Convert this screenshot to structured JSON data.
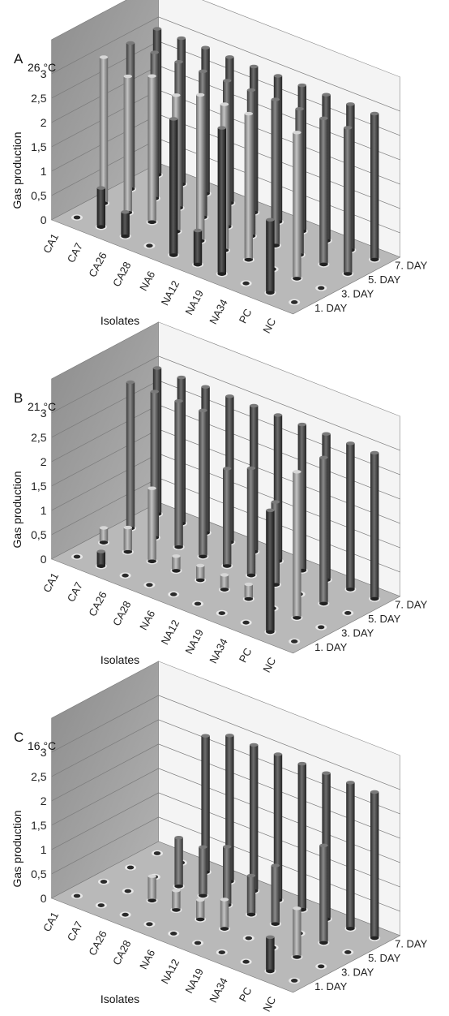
{
  "chart_data": [
    {
      "type": "bar3d",
      "panel_label": "A",
      "title": "26 °C",
      "ylabel": "Gas production",
      "xlabel": "Isolates",
      "categories": [
        "CA1",
        "CA7",
        "CA26",
        "CA28",
        "NA6",
        "NA12",
        "NA19",
        "NA34",
        "PC",
        "NC"
      ],
      "depth_categories": [
        "1. DAY",
        "3. DAY",
        "5. DAY",
        "7. DAY"
      ],
      "zlim": [
        0,
        3
      ],
      "z_ticks": [
        "0",
        "0,5",
        "1",
        "1,5",
        "2",
        "2,5",
        "3"
      ],
      "series": [
        {
          "name": "1. DAY",
          "values": [
            0,
            0.8,
            0.5,
            0,
            2.8,
            0.7,
            3,
            0,
            1.5,
            0
          ]
        },
        {
          "name": "3. DAY",
          "values": [
            3,
            2.8,
            3,
            2.8,
            3,
            3,
            3,
            0,
            3,
            0
          ]
        },
        {
          "name": "5. DAY",
          "values": [
            3,
            3,
            3,
            3,
            3,
            3,
            3,
            3,
            3,
            3
          ]
        },
        {
          "name": "7. DAY",
          "values": [
            3,
            3,
            3,
            3,
            3,
            3,
            3,
            3,
            3,
            3
          ]
        }
      ]
    },
    {
      "type": "bar3d",
      "panel_label": "B",
      "title": "21 °C",
      "ylabel": "Gas production",
      "xlabel": "Isolates",
      "categories": [
        "CA1",
        "CA7",
        "CA26",
        "CA28",
        "NA6",
        "NA12",
        "NA19",
        "NA34",
        "PC",
        "NC"
      ],
      "depth_categories": [
        "1. DAY",
        "3. DAY",
        "5. DAY",
        "7. DAY"
      ],
      "zlim": [
        0,
        3
      ],
      "z_ticks": [
        "0",
        "0,5",
        "1",
        "1,5",
        "2",
        "2,5",
        "3"
      ],
      "series": [
        {
          "name": "1. DAY",
          "values": [
            0,
            0.3,
            0,
            0,
            0,
            0,
            0,
            0,
            2.5,
            0
          ]
        },
        {
          "name": "3. DAY",
          "values": [
            0.3,
            0.5,
            1.5,
            0.3,
            0.3,
            0.3,
            0.3,
            0,
            3,
            0
          ]
        },
        {
          "name": "5. DAY",
          "values": [
            3,
            3,
            3,
            3,
            2,
            2.2,
            1.7,
            0,
            3,
            0
          ]
        },
        {
          "name": "7. DAY",
          "values": [
            3,
            3,
            3,
            3,
            3,
            3,
            3,
            3,
            3,
            3
          ]
        }
      ]
    },
    {
      "type": "bar3d",
      "panel_label": "C",
      "title": "16 °C",
      "ylabel": "Gas production",
      "xlabel": "Isolates",
      "categories": [
        "CA1",
        "CA7",
        "CA26",
        "CA28",
        "NA6",
        "NA12",
        "NA19",
        "NA34",
        "PC",
        "NC"
      ],
      "depth_categories": [
        "1. DAY",
        "3. DAY",
        "5. DAY",
        "7. DAY"
      ],
      "zlim": [
        0,
        3
      ],
      "z_ticks": [
        "0",
        "0,5",
        "1",
        "1,5",
        "2",
        "2,5",
        "3"
      ],
      "series": [
        {
          "name": "1. DAY",
          "values": [
            0,
            0,
            0,
            0,
            0,
            0,
            0,
            0,
            0.7,
            0
          ]
        },
        {
          "name": "3. DAY",
          "values": [
            0,
            0,
            0.5,
            0.4,
            0.4,
            0.6,
            0,
            0,
            1,
            0
          ]
        },
        {
          "name": "5. DAY",
          "values": [
            0,
            0,
            1,
            1,
            1.2,
            0.8,
            1.2,
            0,
            2,
            0
          ]
        },
        {
          "name": "7. DAY",
          "values": [
            0,
            0,
            2.8,
            3,
            3,
            3,
            3,
            3,
            3,
            3
          ]
        }
      ]
    }
  ]
}
